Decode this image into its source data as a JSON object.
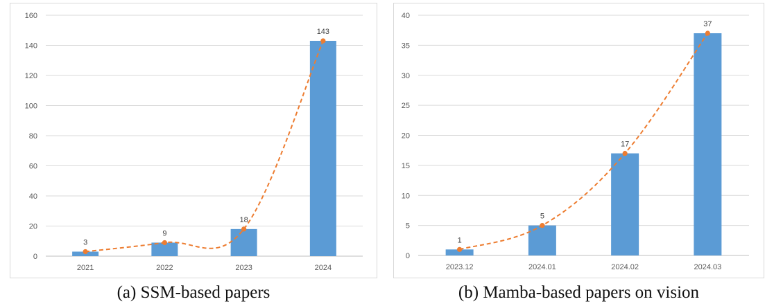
{
  "colors": {
    "bar": "#5b9bd5",
    "line": "#ed7d31",
    "grid": "#d9d9d9",
    "axis": "#bfbfbf"
  },
  "chart_data": [
    {
      "type": "bar",
      "caption": "(a) SSM-based papers",
      "categories": [
        "2021",
        "2022",
        "2023",
        "2024"
      ],
      "values": [
        3,
        9,
        18,
        143
      ],
      "line_overlay": {
        "style": "dashed",
        "markers": true,
        "values": [
          3,
          9,
          18,
          143
        ]
      },
      "data_labels": [
        "3",
        "9",
        "18",
        "143"
      ],
      "ylim": [
        0,
        160
      ],
      "yticks": [
        0,
        20,
        40,
        60,
        80,
        100,
        120,
        140,
        160
      ],
      "grid": true,
      "legend": "none",
      "xlabel": "",
      "ylabel": ""
    },
    {
      "type": "bar",
      "caption": "(b) Mamba-based papers on vision",
      "categories": [
        "2023.12",
        "2024.01",
        "2024.02",
        "2024.03"
      ],
      "values": [
        1,
        5,
        17,
        37
      ],
      "line_overlay": {
        "style": "dashed",
        "markers": true,
        "values": [
          1,
          5,
          17,
          37
        ]
      },
      "data_labels": [
        "1",
        "5",
        "17",
        "37"
      ],
      "ylim": [
        0,
        40
      ],
      "yticks": [
        0,
        5,
        10,
        15,
        20,
        25,
        30,
        35,
        40
      ],
      "grid": true,
      "legend": "none",
      "xlabel": "",
      "ylabel": ""
    }
  ]
}
